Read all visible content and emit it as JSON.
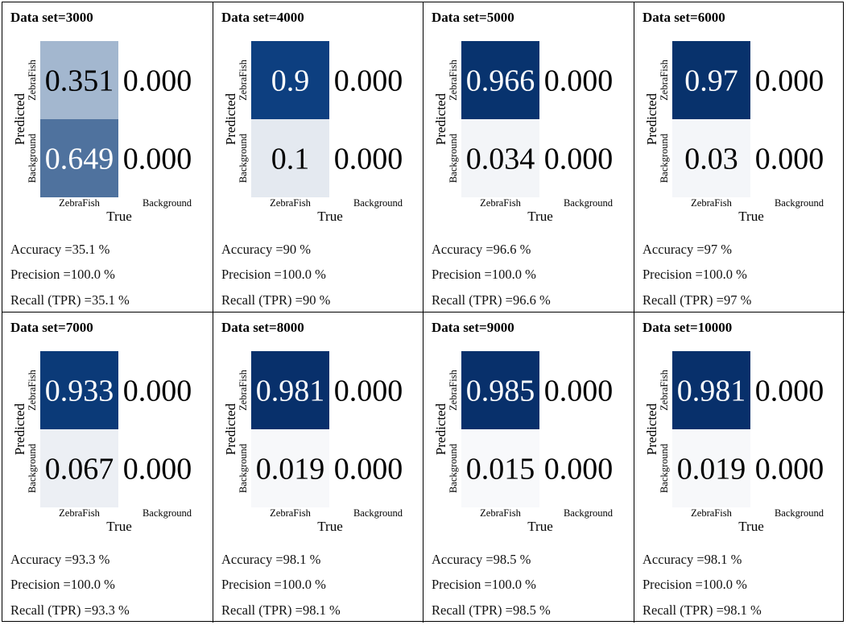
{
  "chart_data": [
    {
      "type": "heatmap",
      "title": "Data set=3000",
      "x_categories": [
        "ZebraFish",
        "Background"
      ],
      "y_categories": [
        "ZebraFish",
        "Background"
      ],
      "xlabel": "True",
      "ylabel": "Predicted",
      "values": [
        [
          "0.351",
          "0.000"
        ],
        [
          "0.649",
          "0.000"
        ]
      ],
      "colors": [
        [
          "#a3b7cf",
          "#ffffff"
        ],
        [
          "#4f729e",
          "#ffffff"
        ]
      ],
      "value_colors": [
        [
          "#000000",
          "#000000"
        ],
        [
          "#ffffff",
          "#000000"
        ]
      ],
      "metrics": {
        "accuracy": "Accuracy =35.1 %",
        "precision": "Precision =100.0 %",
        "recall": "Recall (TPR) =35.1 %"
      }
    },
    {
      "type": "heatmap",
      "title": "Data set=4000",
      "x_categories": [
        "ZebraFish",
        "Background"
      ],
      "y_categories": [
        "ZebraFish",
        "Background"
      ],
      "xlabel": "True",
      "ylabel": "Predicted",
      "values": [
        [
          "0.9",
          "0.000"
        ],
        [
          "0.1",
          "0.000"
        ]
      ],
      "colors": [
        [
          "#0d3f80",
          "#ffffff"
        ],
        [
          "#e4e9f0",
          "#ffffff"
        ]
      ],
      "value_colors": [
        [
          "#ffffff",
          "#000000"
        ],
        [
          "#000000",
          "#000000"
        ]
      ],
      "metrics": {
        "accuracy": "Accuracy =90 %",
        "precision": "Precision =100.0 %",
        "recall": "Recall (TPR) =90 %"
      }
    },
    {
      "type": "heatmap",
      "title": "Data set=5000",
      "x_categories": [
        "ZebraFish",
        "Background"
      ],
      "y_categories": [
        "ZebraFish",
        "Background"
      ],
      "xlabel": "True",
      "ylabel": "Predicted",
      "values": [
        [
          "0.966",
          "0.000"
        ],
        [
          "0.034",
          "0.000"
        ]
      ],
      "colors": [
        [
          "#08336e",
          "#ffffff"
        ],
        [
          "#f3f5f8",
          "#ffffff"
        ]
      ],
      "value_colors": [
        [
          "#ffffff",
          "#000000"
        ],
        [
          "#000000",
          "#000000"
        ]
      ],
      "metrics": {
        "accuracy": "Accuracy =96.6 %",
        "precision": "Precision =100.0 %",
        "recall": "Recall (TPR) =96.6 %"
      }
    },
    {
      "type": "heatmap",
      "title": "Data set=6000",
      "x_categories": [
        "ZebraFish",
        "Background"
      ],
      "y_categories": [
        "ZebraFish",
        "Background"
      ],
      "xlabel": "True",
      "ylabel": "Predicted",
      "values": [
        [
          "0.97",
          "0.000"
        ],
        [
          "0.03",
          "0.000"
        ]
      ],
      "colors": [
        [
          "#08326c",
          "#ffffff"
        ],
        [
          "#f4f6f9",
          "#ffffff"
        ]
      ],
      "value_colors": [
        [
          "#ffffff",
          "#000000"
        ],
        [
          "#000000",
          "#000000"
        ]
      ],
      "metrics": {
        "accuracy": "Accuracy =97 %",
        "precision": "Precision =100.0 %",
        "recall": "Recall (TPR) =97 %"
      }
    },
    {
      "type": "heatmap",
      "title": "Data set=7000",
      "x_categories": [
        "ZebraFish",
        "Background"
      ],
      "y_categories": [
        "ZebraFish",
        "Background"
      ],
      "xlabel": "True",
      "ylabel": "Predicted",
      "values": [
        [
          "0.933",
          "0.000"
        ],
        [
          "0.067",
          "0.000"
        ]
      ],
      "colors": [
        [
          "#0b3a78",
          "#ffffff"
        ],
        [
          "#eceff4",
          "#ffffff"
        ]
      ],
      "value_colors": [
        [
          "#ffffff",
          "#000000"
        ],
        [
          "#000000",
          "#000000"
        ]
      ],
      "metrics": {
        "accuracy": "Accuracy =93.3 %",
        "precision": "Precision =100.0 %",
        "recall": "Recall (TPR) =93.3 %"
      }
    },
    {
      "type": "heatmap",
      "title": "Data set=8000",
      "x_categories": [
        "ZebraFish",
        "Background"
      ],
      "y_categories": [
        "ZebraFish",
        "Background"
      ],
      "xlabel": "True",
      "ylabel": "Predicted",
      "values": [
        [
          "0.981",
          "0.000"
        ],
        [
          "0.019",
          "0.000"
        ]
      ],
      "colors": [
        [
          "#08306b",
          "#ffffff"
        ],
        [
          "#f7f8fa",
          "#ffffff"
        ]
      ],
      "value_colors": [
        [
          "#ffffff",
          "#000000"
        ],
        [
          "#000000",
          "#000000"
        ]
      ],
      "metrics": {
        "accuracy": "Accuracy =98.1 %",
        "precision": "Precision =100.0 %",
        "recall": "Recall (TPR) =98.1 %"
      }
    },
    {
      "type": "heatmap",
      "title": "Data set=9000",
      "x_categories": [
        "ZebraFish",
        "Background"
      ],
      "y_categories": [
        "ZebraFish",
        "Background"
      ],
      "xlabel": "True",
      "ylabel": "Predicted",
      "values": [
        [
          "0.985",
          "0.000"
        ],
        [
          "0.015",
          "0.000"
        ]
      ],
      "colors": [
        [
          "#08306b",
          "#ffffff"
        ],
        [
          "#f8f9fb",
          "#ffffff"
        ]
      ],
      "value_colors": [
        [
          "#ffffff",
          "#000000"
        ],
        [
          "#000000",
          "#000000"
        ]
      ],
      "metrics": {
        "accuracy": "Accuracy =98.5 %",
        "precision": "Precision =100.0 %",
        "recall": "Recall (TPR) =98.5 %"
      }
    },
    {
      "type": "heatmap",
      "title": "Data set=10000",
      "x_categories": [
        "ZebraFish",
        "Background"
      ],
      "y_categories": [
        "ZebraFish",
        "Background"
      ],
      "xlabel": "True",
      "ylabel": "Predicted",
      "values": [
        [
          "0.981",
          "0.000"
        ],
        [
          "0.019",
          "0.000"
        ]
      ],
      "colors": [
        [
          "#08306b",
          "#ffffff"
        ],
        [
          "#f7f8fa",
          "#ffffff"
        ]
      ],
      "value_colors": [
        [
          "#ffffff",
          "#000000"
        ],
        [
          "#000000",
          "#000000"
        ]
      ],
      "metrics": {
        "accuracy": "Accuracy =98.1 %",
        "precision": "Precision =100.0 %",
        "recall": "Recall (TPR) =98.1 %"
      }
    }
  ]
}
